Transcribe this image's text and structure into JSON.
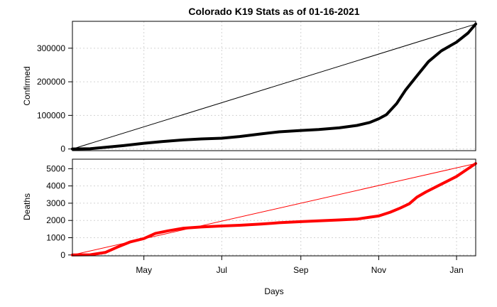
{
  "chart_data": {
    "type": "line",
    "title": "Colorado K19 Stats as of 01-16-2021",
    "xlabel": "Days",
    "x_ticks": [
      "May",
      "Jul",
      "Sep",
      "Nov",
      "Jan"
    ],
    "x_range": [
      "2020-03-06",
      "2021-01-16"
    ],
    "grid": true,
    "panels": [
      {
        "ylabel": "Confirmed",
        "ylim": [
          -5000,
          380000
        ],
        "y_ticks": [
          "0",
          "100000",
          "200000",
          "300000"
        ],
        "color": "#000000",
        "series": [
          {
            "x": [
              "2020-03-06",
              "2020-03-20",
              "2020-04-01",
              "2020-04-15",
              "2020-05-01",
              "2020-05-15",
              "2020-06-01",
              "2020-06-15",
              "2020-07-01",
              "2020-07-15",
              "2020-08-01",
              "2020-08-15",
              "2020-09-01",
              "2020-09-15",
              "2020-10-01",
              "2020-10-15",
              "2020-10-25",
              "2020-11-01",
              "2020-11-07",
              "2020-11-15",
              "2020-11-22",
              "2020-12-01",
              "2020-12-10",
              "2020-12-20",
              "2021-01-01",
              "2021-01-10",
              "2021-01-16"
            ],
            "values": [
              0,
              1000,
              5000,
              10000,
              17000,
              22000,
              27000,
              30000,
              32000,
              37000,
              45000,
              51000,
              55000,
              58000,
              63000,
              70000,
              79000,
              90000,
              102000,
              135000,
              175000,
              218000,
              260000,
              292000,
              318000,
              345000,
              372000
            ]
          },
          {
            "x": [
              "2020-03-06",
              "2021-01-16"
            ],
            "values": [
              0,
              372000
            ]
          }
        ]
      },
      {
        "ylabel": "Deaths",
        "ylim": [
          -50,
          5550
        ],
        "y_ticks": [
          "0",
          "1000",
          "2000",
          "3000",
          "4000",
          "5000"
        ],
        "color": "#ff0000",
        "series": [
          {
            "x": [
              "2020-03-06",
              "2020-03-20",
              "2020-04-01",
              "2020-04-10",
              "2020-04-20",
              "2020-05-01",
              "2020-05-10",
              "2020-05-20",
              "2020-06-01",
              "2020-06-15",
              "2020-07-01",
              "2020-07-15",
              "2020-08-01",
              "2020-08-15",
              "2020-09-01",
              "2020-09-15",
              "2020-10-01",
              "2020-10-15",
              "2020-10-25",
              "2020-11-01",
              "2020-11-10",
              "2020-11-18",
              "2020-11-25",
              "2020-12-01",
              "2020-12-08",
              "2020-12-20",
              "2021-01-01",
              "2021-01-10",
              "2021-01-16"
            ],
            "values": [
              0,
              10,
              150,
              450,
              750,
              950,
              1250,
              1400,
              1550,
              1620,
              1680,
              1720,
              1790,
              1870,
              1930,
              1980,
              2030,
              2080,
              2190,
              2260,
              2480,
              2720,
              2970,
              3350,
              3650,
              4100,
              4550,
              5000,
              5300
            ]
          },
          {
            "x": [
              "2020-03-06",
              "2021-01-16"
            ],
            "values": [
              0,
              5300
            ]
          }
        ]
      }
    ]
  }
}
